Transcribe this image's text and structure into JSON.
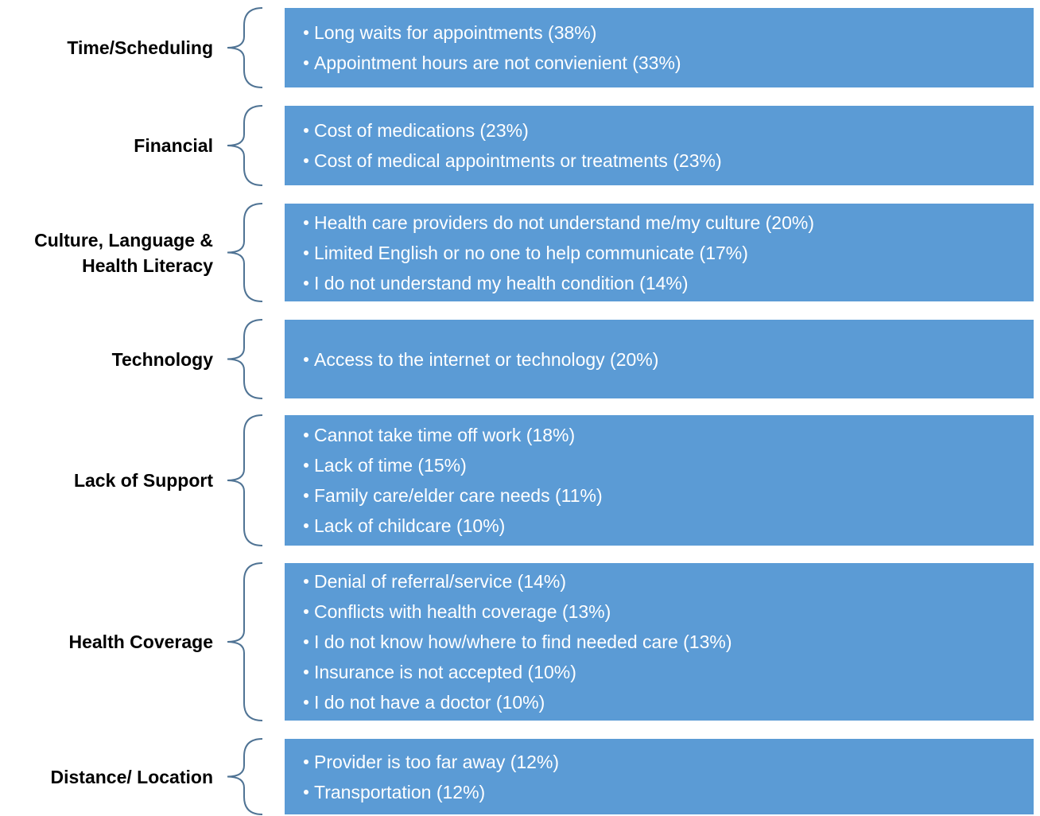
{
  "groups": [
    {
      "label": "Time/Scheduling",
      "items": [
        "Long waits for appointments (38%)",
        "Appointment hours are not convienient (33%)"
      ]
    },
    {
      "label": "Financial",
      "items": [
        "Cost of medications (23%)",
        "Cost of medical appointments or treatments (23%)"
      ]
    },
    {
      "label": "Culture, Language & Health Literacy",
      "items": [
        "Health care providers do not understand me/my culture (20%)",
        "Limited English or no one to help communicate (17%)",
        "I do not understand my health condition (14%)"
      ]
    },
    {
      "label": "Technology",
      "items": [
        "Access to the internet or technology (20%)"
      ]
    },
    {
      "label": "Lack of Support",
      "items": [
        "Cannot take time off work (18%)",
        "Lack of time (15%)",
        "Family care/elder care needs (11%)",
        "Lack of childcare (10%)"
      ]
    },
    {
      "label": "Health Coverage",
      "items": [
        "Denial of referral/service (14%)",
        "Conflicts with health coverage (13%)",
        "I do not know how/where to find needed care (13%)",
        "Insurance is not accepted (10%)",
        "I do not have a doctor (10%)"
      ]
    },
    {
      "label": "Distance/ Location",
      "items": [
        "Provider is too far away (12%)",
        "Transportation (12%)"
      ]
    }
  ]
}
